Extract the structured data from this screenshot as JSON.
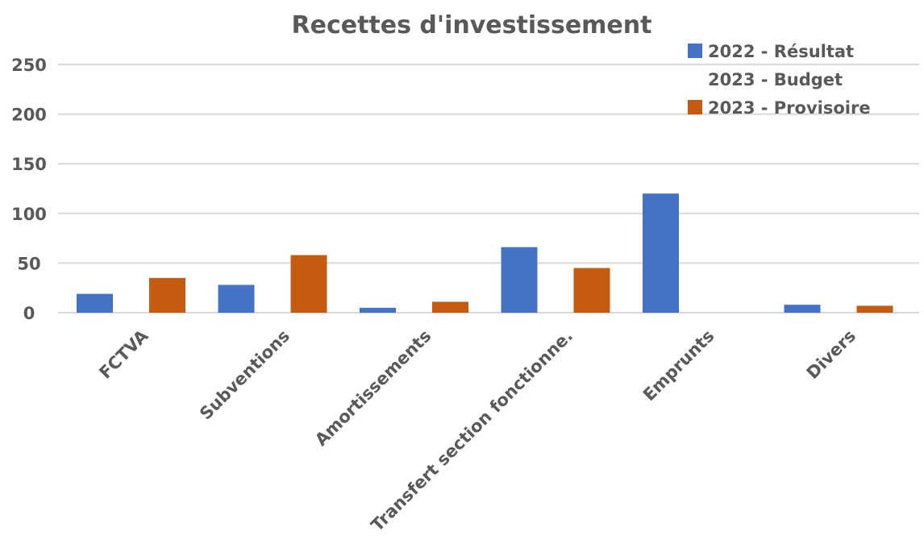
{
  "chart_data": {
    "type": "bar",
    "title": "Recettes d'investissement",
    "xlabel": "",
    "ylabel": "",
    "ylim": [
      0,
      250
    ],
    "yticks": [
      0,
      50,
      100,
      150,
      200,
      250
    ],
    "grid": true,
    "legend_position": "top-right",
    "categories": [
      "FCTVA",
      "Subventions",
      "Amortissements",
      "Transfert section fonctionne.",
      "Emprunts",
      "Divers"
    ],
    "series": [
      {
        "name": "2022 - Résultat",
        "color": "#4472c4",
        "values": [
          19,
          28,
          5,
          66,
          120,
          8
        ]
      },
      {
        "name": "2023 - Budget",
        "color": "#ffffff",
        "values": [
          0,
          0,
          0,
          0,
          0,
          0
        ]
      },
      {
        "name": "2023 - Provisoire",
        "color": "#c55a11",
        "values": [
          35,
          58,
          11,
          45,
          0,
          7
        ]
      }
    ]
  }
}
